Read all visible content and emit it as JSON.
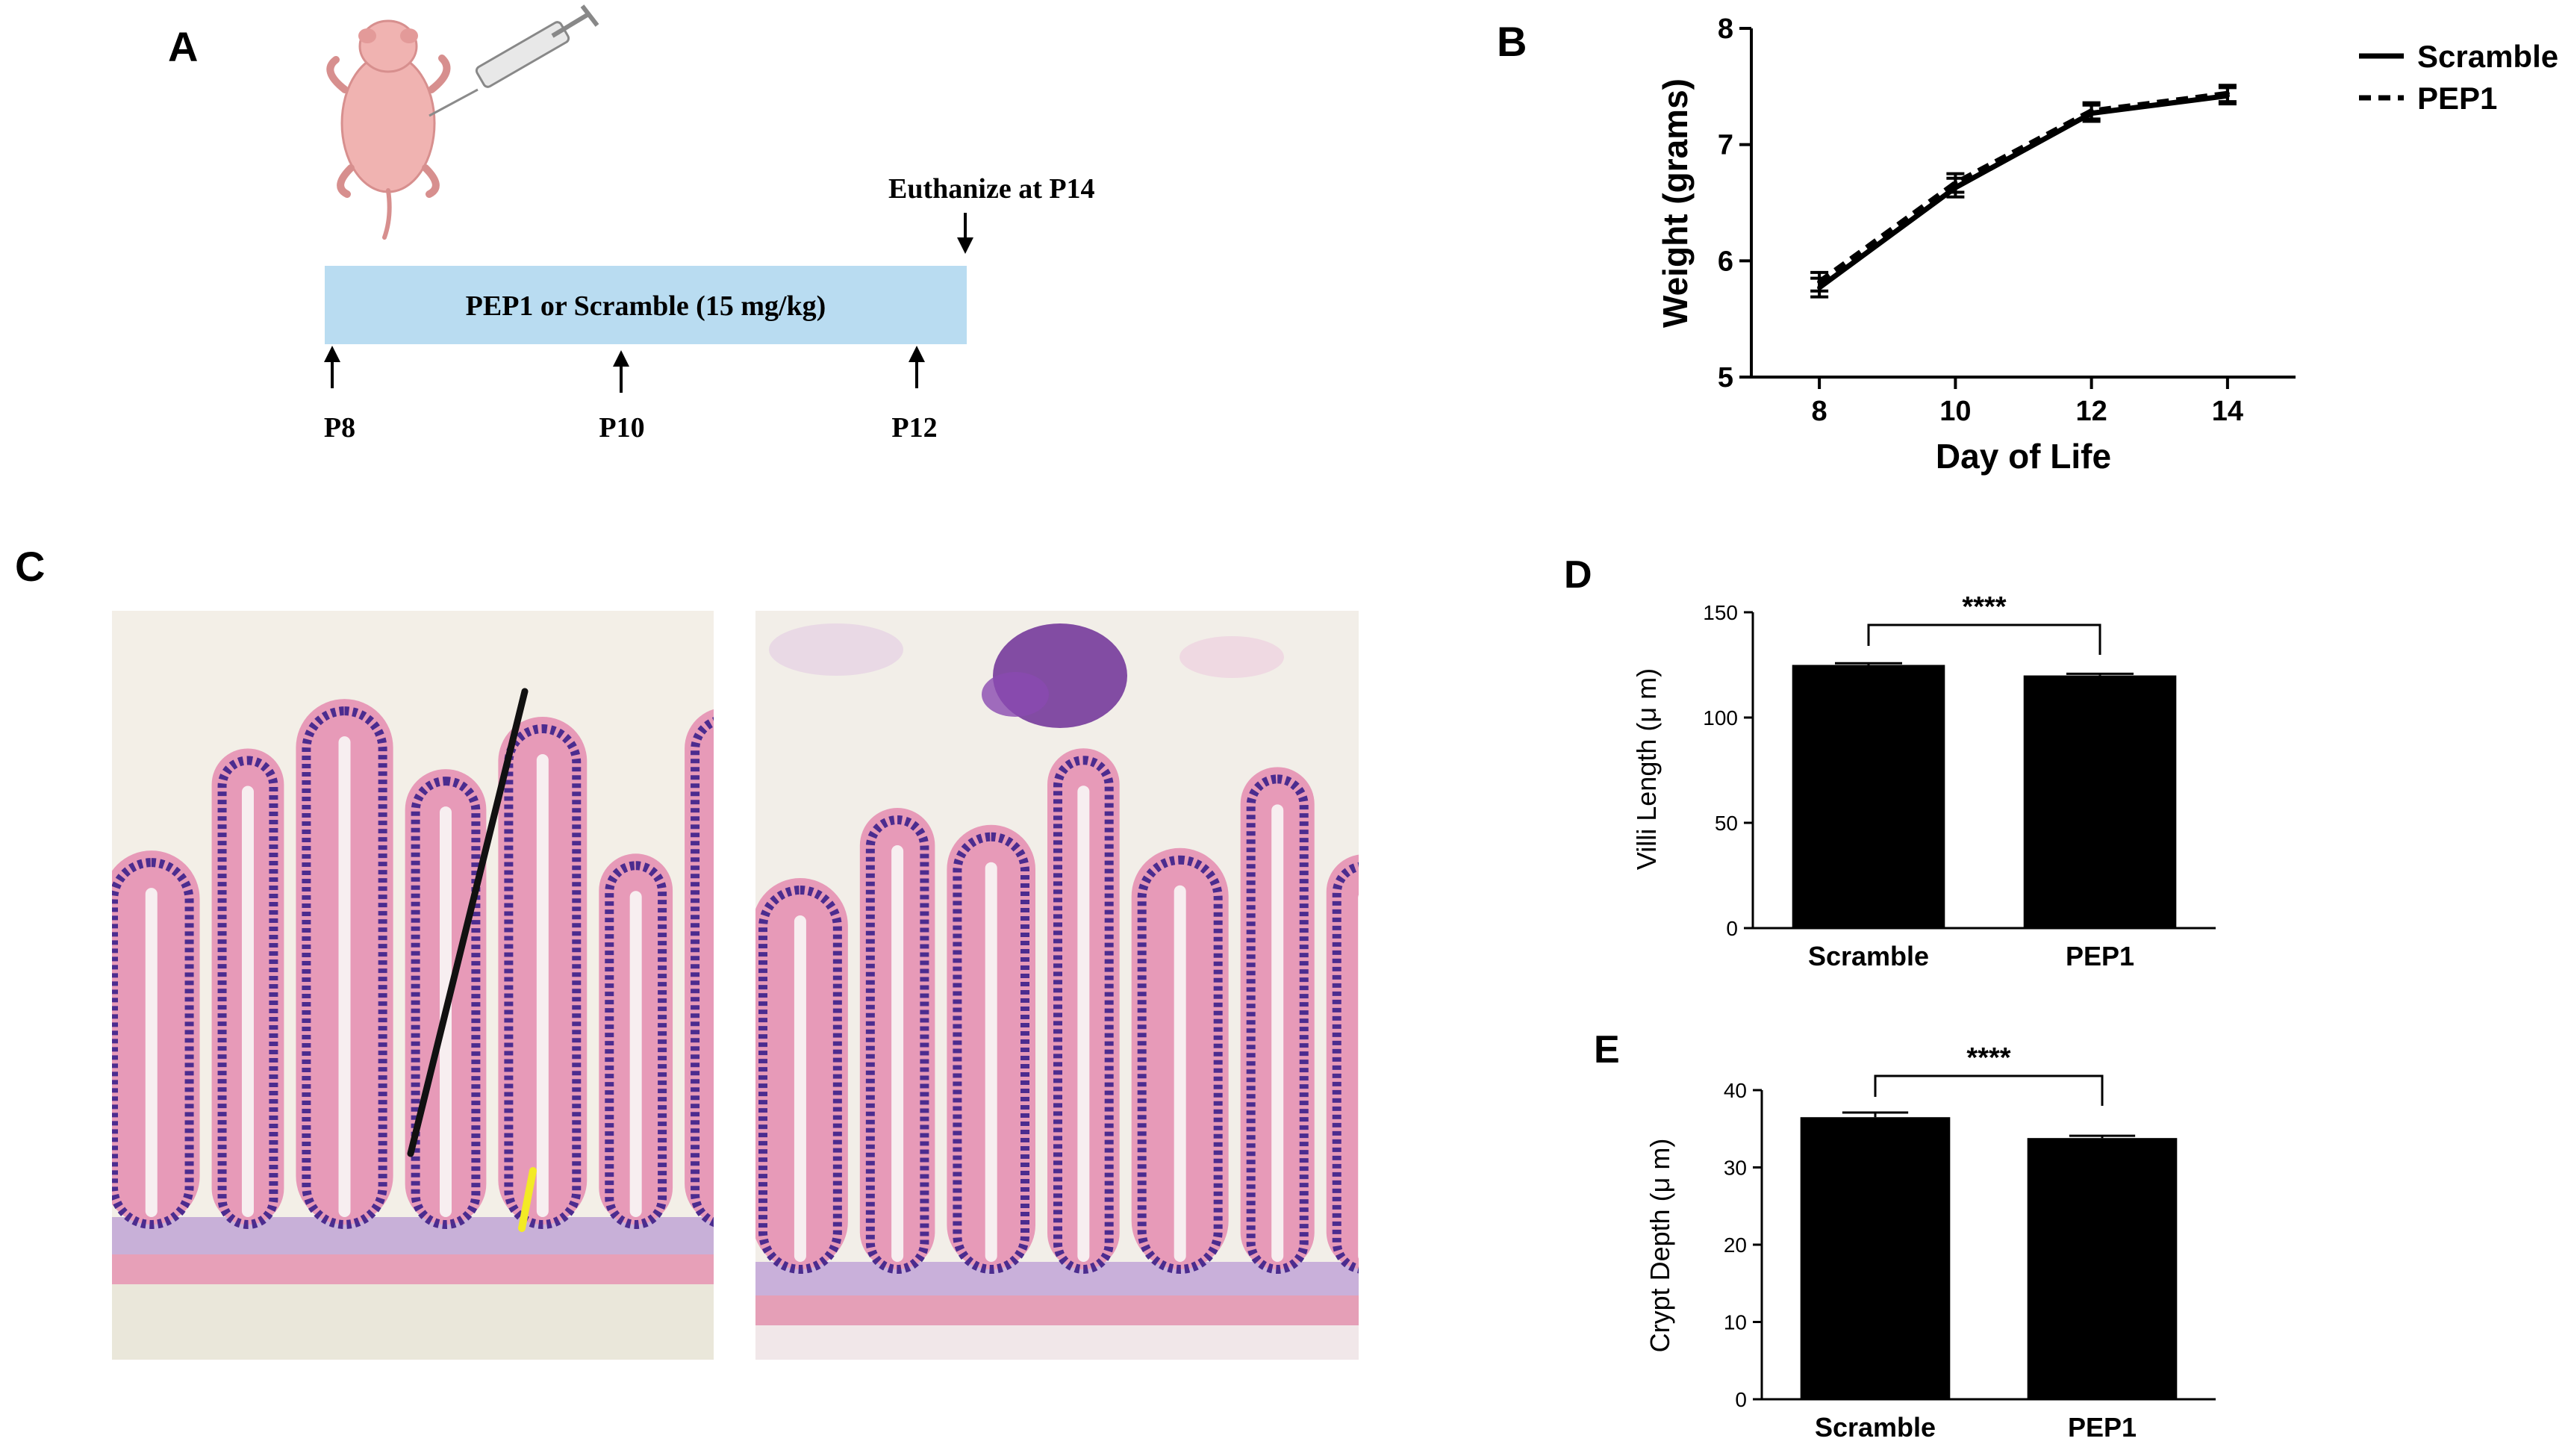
{
  "panels": {
    "A": {
      "letter": "A"
    },
    "B": {
      "letter": "B"
    },
    "C": {
      "letter": "C"
    },
    "D": {
      "letter": "D"
    },
    "E": {
      "letter": "E"
    }
  },
  "timeline": {
    "bar_label": "PEP1 or Scramble (15 mg/kg)",
    "euthanize_label": "Euthanize at P14",
    "days": [
      "P8",
      "P10",
      "P12"
    ],
    "bar_color": "#b9dcf1",
    "icons": [
      "mouse-pup-icon",
      "syringe-icon",
      "arrow-up-icon",
      "arrow-down-icon"
    ]
  },
  "histology": {
    "images": [
      "scramble-histology-image",
      "pep1-histology-image"
    ],
    "colors": {
      "tissue": "#e79ab8",
      "nuclei": "#4b2c8f",
      "background": "#f3efe7",
      "villus_line": "#111111",
      "crypt_line": "#f3ea25"
    }
  },
  "chart_data": [
    {
      "type": "line",
      "panel": "B",
      "x": [
        8,
        10,
        12,
        14
      ],
      "series": [
        {
          "name": "Scramble",
          "values": [
            5.77,
            6.63,
            7.27,
            7.42
          ],
          "errors": [
            0.08,
            0.08,
            0.07,
            0.07
          ],
          "style": "solid"
        },
        {
          "name": "PEP1",
          "values": [
            5.82,
            6.67,
            7.29,
            7.44
          ],
          "errors": [
            0.08,
            0.08,
            0.07,
            0.07
          ],
          "style": "dashed"
        }
      ],
      "xlabel": "Day of Life",
      "ylabel": "Weight (grams)",
      "xlim": [
        7,
        15
      ],
      "ylim": [
        5,
        8
      ],
      "xticks": [
        "8",
        "10",
        "12",
        "14"
      ],
      "yticks": [
        "5",
        "6",
        "7",
        "8"
      ],
      "legend_position": "top-right",
      "grid": false
    },
    {
      "type": "bar",
      "panel": "D",
      "categories": [
        "Scramble",
        "PEP1"
      ],
      "values": [
        125,
        120
      ],
      "errors": [
        0.8,
        0.8
      ],
      "ylabel": "Villi Length (μ m)",
      "ylim": [
        0,
        150
      ],
      "yticks": [
        "0",
        "50",
        "100",
        "150"
      ],
      "significance": "****",
      "grid": false
    },
    {
      "type": "bar",
      "panel": "E",
      "categories": [
        "Scramble",
        "PEP1"
      ],
      "values": [
        36.5,
        33.8
      ],
      "errors": [
        0.6,
        0.3
      ],
      "ylabel": "Crypt Depth (μ m)",
      "ylim": [
        0,
        40
      ],
      "yticks": [
        "0",
        "10",
        "20",
        "30",
        "40"
      ],
      "significance": "****",
      "grid": false
    }
  ]
}
